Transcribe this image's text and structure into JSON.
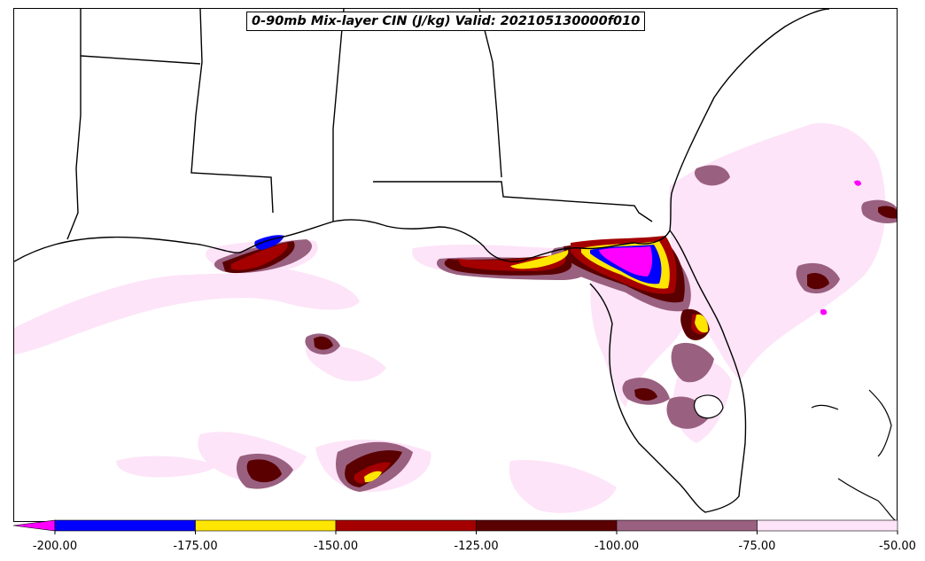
{
  "title": "0-90mb Mix-layer CIN (J/kg) Valid: 202105130000f010",
  "colorbar": {
    "extend": "min",
    "min_value": -200,
    "max_value": -50,
    "tick_labels": [
      "-200.00",
      "-175.00",
      "-150.00",
      "-125.00",
      "-100.00",
      "-75.00",
      "-50.00"
    ],
    "bins": [
      {
        "from": -250,
        "to": -200,
        "color": "#ff00ff"
      },
      {
        "from": -200,
        "to": -175,
        "color": "#0000ff"
      },
      {
        "from": -175,
        "to": -150,
        "color": "#ffe600"
      },
      {
        "from": -150,
        "to": -125,
        "color": "#a50000"
      },
      {
        "from": -125,
        "to": -100,
        "color": "#5a0000"
      },
      {
        "from": -100,
        "to": -75,
        "color": "#9a6080"
      },
      {
        "from": -75,
        "to": -50,
        "color": "#fde4f8"
      }
    ]
  },
  "map": {
    "land_color": "#ffffff",
    "water_color": "#ffffff",
    "border_color": "#000000"
  }
}
